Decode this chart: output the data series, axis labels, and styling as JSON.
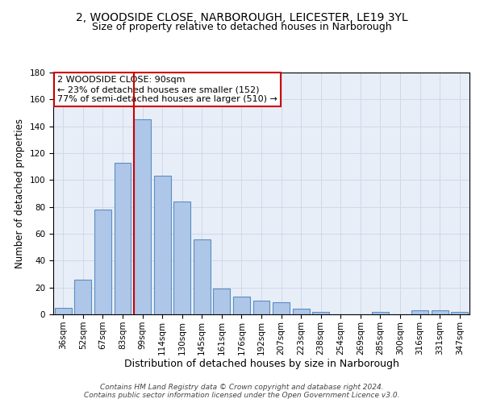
{
  "title_line1": "2, WOODSIDE CLOSE, NARBOROUGH, LEICESTER, LE19 3YL",
  "title_line2": "Size of property relative to detached houses in Narborough",
  "xlabel": "Distribution of detached houses by size in Narborough",
  "ylabel": "Number of detached properties",
  "bar_labels": [
    "36sqm",
    "52sqm",
    "67sqm",
    "83sqm",
    "99sqm",
    "114sqm",
    "130sqm",
    "145sqm",
    "161sqm",
    "176sqm",
    "192sqm",
    "207sqm",
    "223sqm",
    "238sqm",
    "254sqm",
    "269sqm",
    "285sqm",
    "300sqm",
    "316sqm",
    "331sqm",
    "347sqm"
  ],
  "bar_values": [
    5,
    26,
    78,
    113,
    145,
    103,
    84,
    56,
    19,
    13,
    10,
    9,
    4,
    2,
    0,
    0,
    2,
    0,
    3,
    3,
    2
  ],
  "bar_color": "#aec6e8",
  "bar_edge_color": "#5a8fc2",
  "vline_color": "#cc0000",
  "annotation_text": "2 WOODSIDE CLOSE: 90sqm\n← 23% of detached houses are smaller (152)\n77% of semi-detached houses are larger (510) →",
  "annotation_box_color": "white",
  "annotation_box_edge": "#cc0000",
  "ylim": [
    0,
    180
  ],
  "yticks": [
    0,
    20,
    40,
    60,
    80,
    100,
    120,
    140,
    160,
    180
  ],
  "grid_color": "#d0d8e8",
  "background_color": "#e8eef8",
  "footer_line1": "Contains HM Land Registry data © Crown copyright and database right 2024.",
  "footer_line2": "Contains public sector information licensed under the Open Government Licence v3.0.",
  "title_fontsize": 10,
  "subtitle_fontsize": 9,
  "axis_label_fontsize": 8.5,
  "tick_fontsize": 7.5,
  "annotation_fontsize": 8,
  "footer_fontsize": 6.5
}
